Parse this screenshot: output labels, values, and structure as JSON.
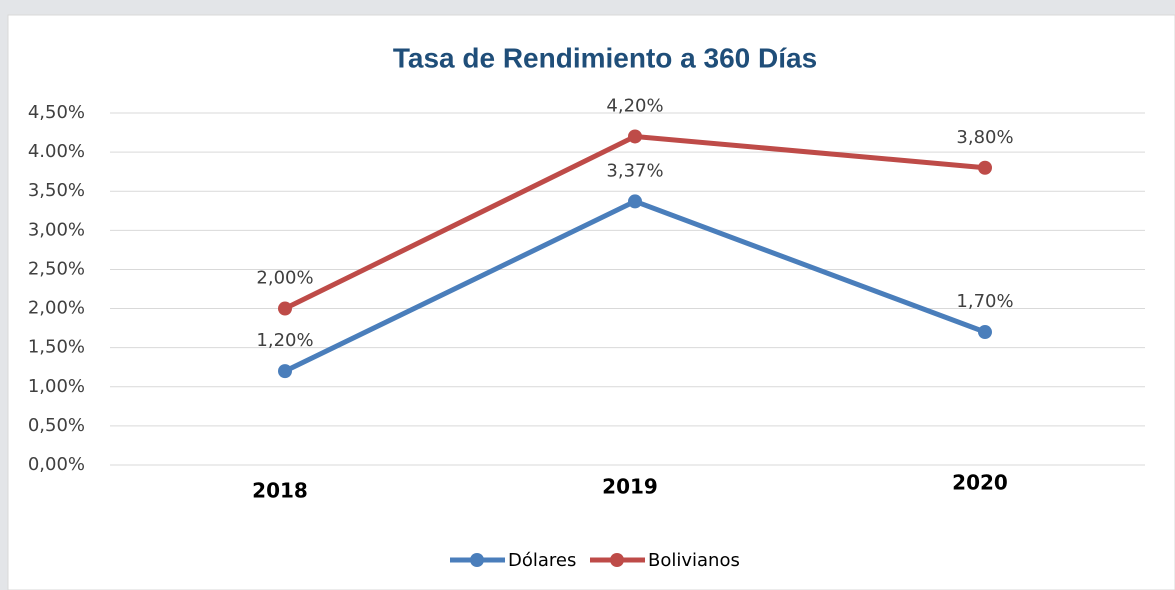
{
  "chart_data": {
    "type": "line",
    "title": "Tasa de Rendimiento a 360 Días",
    "categories": [
      "2018",
      "2019",
      "2020"
    ],
    "series": [
      {
        "name": "Dólares",
        "color": "#4a7ebb",
        "values": [
          1.2,
          3.37,
          1.7
        ],
        "value_labels": [
          "1,20%",
          "3,37%",
          "1,70%"
        ]
      },
      {
        "name": "Bolivianos",
        "color": "#be4b48",
        "values": [
          2.0,
          4.2,
          3.8
        ],
        "value_labels": [
          "2,00%",
          "4,20%",
          "3,80%"
        ]
      }
    ],
    "ylim": [
      0,
      4.5
    ],
    "yticks": [
      {
        "value": 0,
        "label": "0,00%"
      },
      {
        "value": 0.5,
        "label": "0,50%"
      },
      {
        "value": 1,
        "label": "1,00%"
      },
      {
        "value": 1.5,
        "label": "1,50%"
      },
      {
        "value": 2,
        "label": "2,00%"
      },
      {
        "value": 2.5,
        "label": "2,50%"
      },
      {
        "value": 3,
        "label": "3,00%"
      },
      {
        "value": 3.5,
        "label": "3,50%"
      },
      {
        "value": 4,
        "label": "4.00%"
      },
      {
        "value": 4.5,
        "label": "4,50%"
      }
    ],
    "grid": true,
    "legend": "bottom"
  }
}
